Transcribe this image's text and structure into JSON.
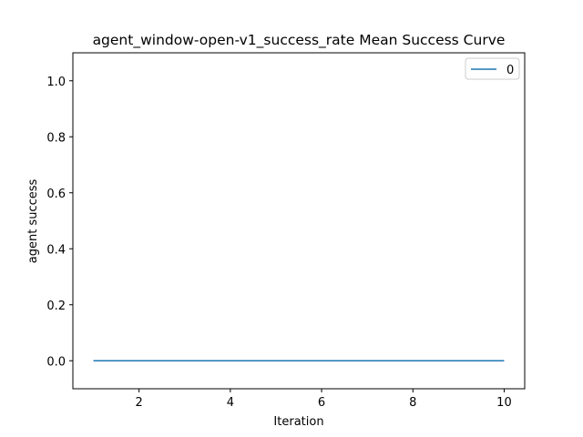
{
  "chart_data": {
    "type": "line",
    "title": "agent_window-open-v1_success_rate Mean Success Curve",
    "xlabel": "Iteration",
    "ylabel": "agent success",
    "x": [
      1,
      2,
      3,
      4,
      5,
      6,
      7,
      8,
      9,
      10
    ],
    "series": [
      {
        "name": "0",
        "values": [
          0,
          0,
          0,
          0,
          0,
          0,
          0,
          0,
          0,
          0
        ],
        "color": "#1f77b4"
      }
    ],
    "xlim": [
      0.55,
      10.45
    ],
    "ylim": [
      -0.1,
      1.1
    ],
    "xticks": [
      2,
      4,
      6,
      8,
      10
    ],
    "xtick_labels": [
      "2",
      "4",
      "6",
      "8",
      "10"
    ],
    "yticks": [
      0.0,
      0.2,
      0.4,
      0.6,
      0.8,
      1.0
    ],
    "ytick_labels": [
      "0.0",
      "0.2",
      "0.4",
      "0.6",
      "0.8",
      "1.0"
    ],
    "grid": false,
    "legend_position": "top-right"
  }
}
